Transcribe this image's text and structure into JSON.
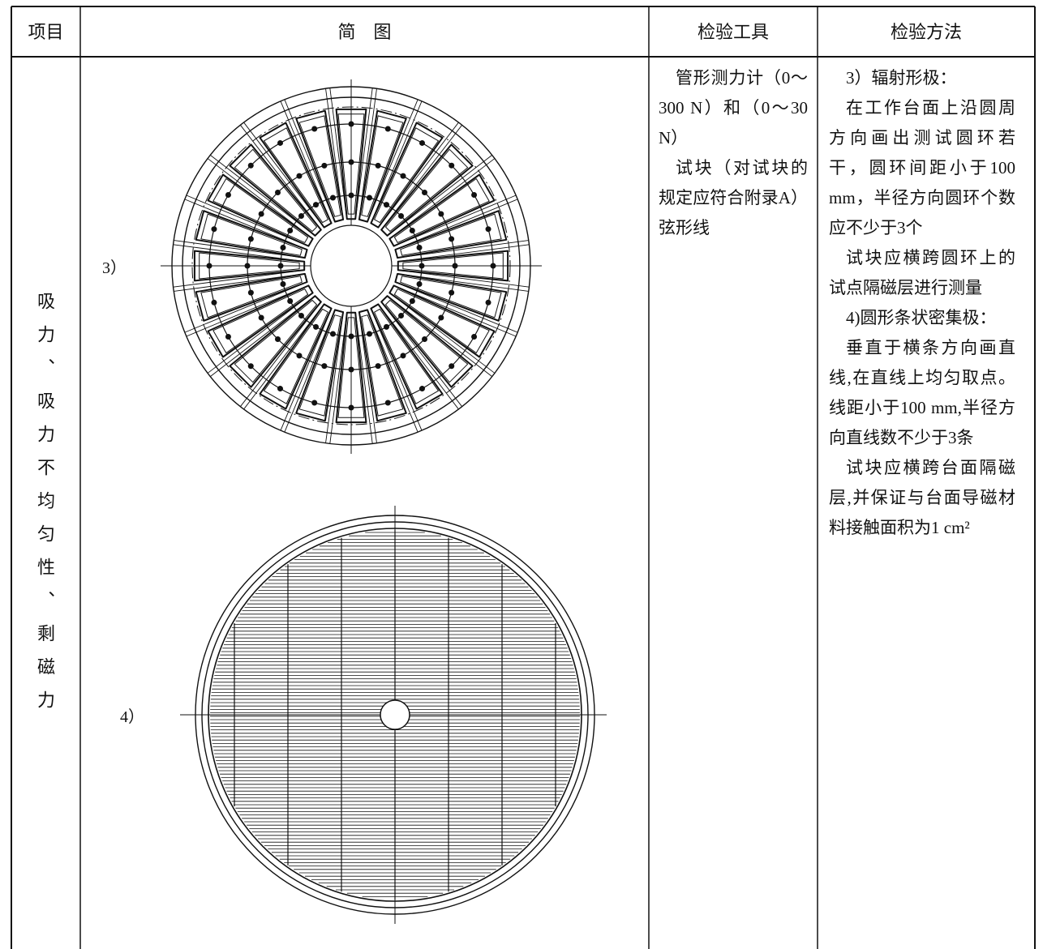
{
  "table": {
    "header": [
      "项目",
      "简　图",
      "检验工具",
      "检验方法"
    ],
    "rows": [
      {
        "item": "吸力、吸力不均匀性、剩磁力",
        "diagram_labels": [
          "3）",
          "4）"
        ],
        "tools": [
          "管形测力计（0～300 N）和（0～30 N）",
          "试块（对试块的规定应符合附录A）弦形线"
        ],
        "methods": [
          "3）辐射形极：",
          "在工作台面上沿圆周方向画出测试圆环若干，圆环间距小于100 mm，半径方向圆环个数应不少于3个",
          "试块应横跨圆环上的试点隔磁层进行测量",
          "4)圆形条状密集极：",
          "垂直于横条方向画直线,在直线上均匀取点。线距小于100 mm,半径方向直线数不少于3条",
          "试块应横跨台面隔磁层,并保证与台面导磁材料接触面积为1 cm²"
        ]
      }
    ]
  }
}
